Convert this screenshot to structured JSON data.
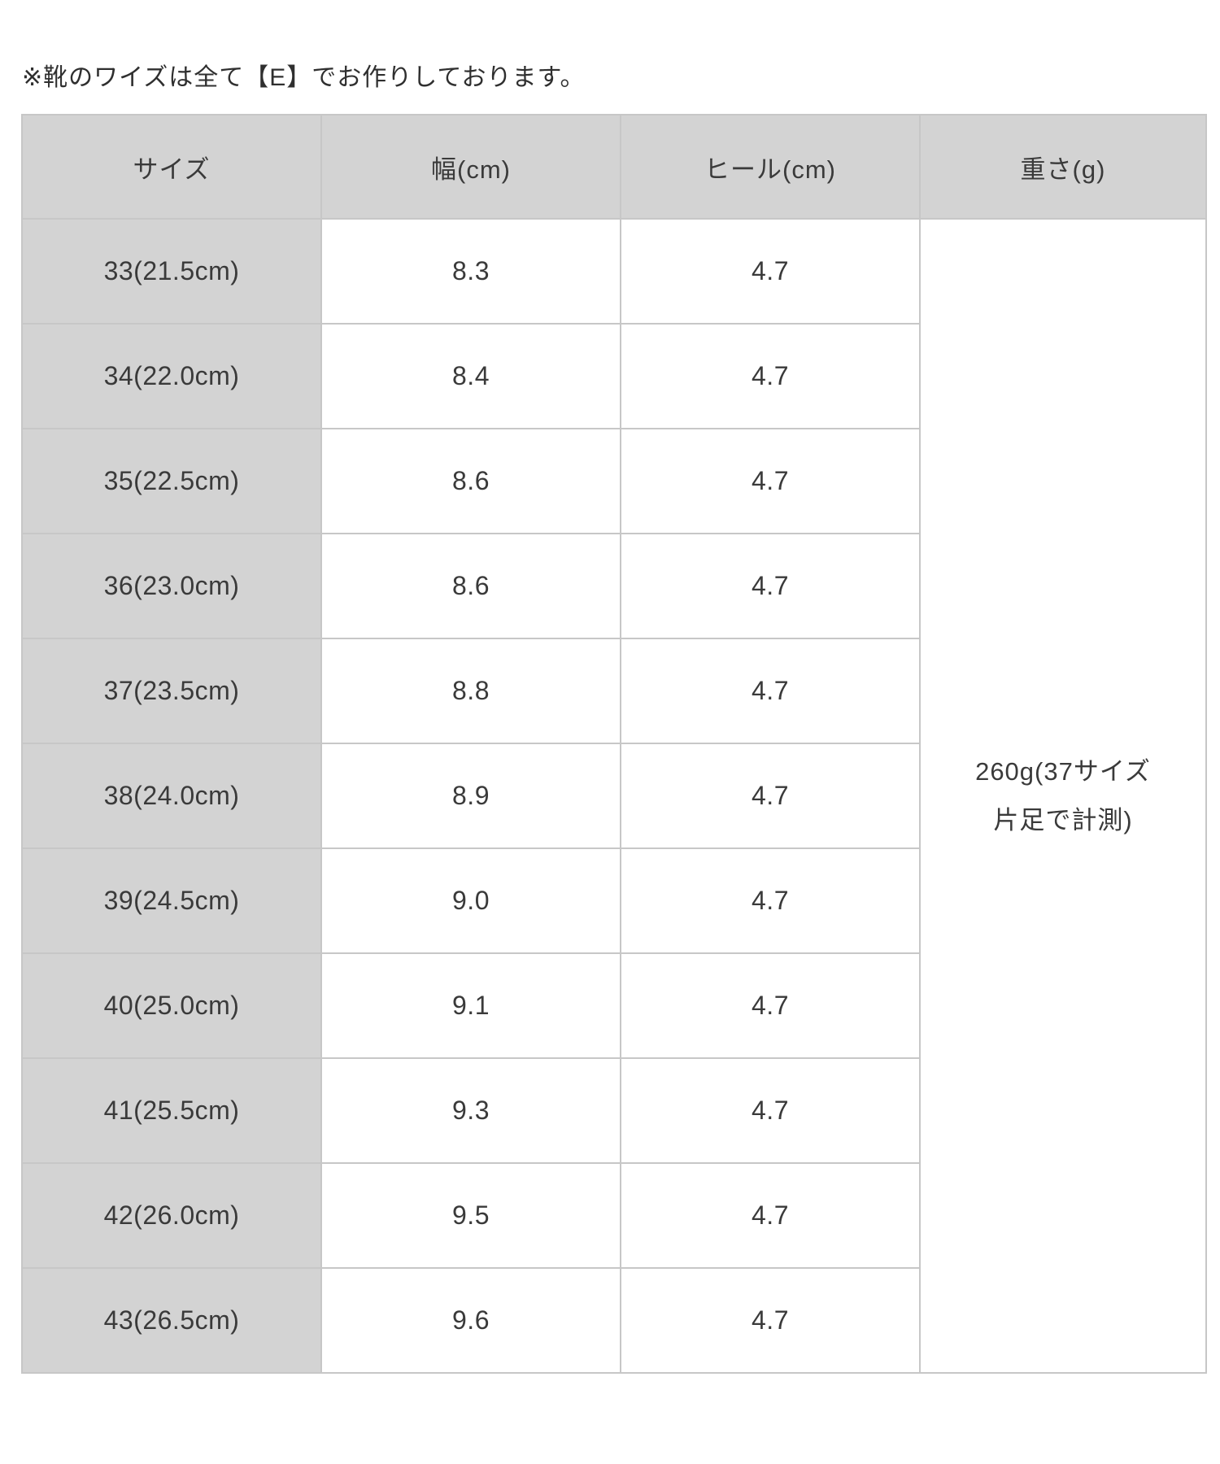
{
  "page": {
    "note": "※靴のワイズは全て【E】でお作りしております。"
  },
  "table": {
    "headers": [
      "サイズ",
      "幅(cm)",
      "ヒール(cm)",
      "重さ(g)"
    ],
    "rows": [
      {
        "size": "33(21.5cm)",
        "width": "8.3",
        "heel": "4.7"
      },
      {
        "size": "34(22.0cm)",
        "width": "8.4",
        "heel": "4.7"
      },
      {
        "size": "35(22.5cm)",
        "width": "8.6",
        "heel": "4.7"
      },
      {
        "size": "36(23.0cm)",
        "width": "8.6",
        "heel": "4.7"
      },
      {
        "size": "37(23.5cm)",
        "width": "8.8",
        "heel": "4.7"
      },
      {
        "size": "38(24.0cm)",
        "width": "8.9",
        "heel": "4.7"
      },
      {
        "size": "39(24.5cm)",
        "width": "9.0",
        "heel": "4.7"
      },
      {
        "size": "40(25.0cm)",
        "width": "9.1",
        "heel": "4.7"
      },
      {
        "size": "41(25.5cm)",
        "width": "9.3",
        "heel": "4.7"
      },
      {
        "size": "42(26.0cm)",
        "width": "9.5",
        "heel": "4.7"
      },
      {
        "size": "43(26.5cm)",
        "width": "9.6",
        "heel": "4.7"
      }
    ],
    "weight": {
      "line1": "260g(37サイズ",
      "line2": "片足で計測)"
    }
  },
  "colors": {
    "cell_gray": "#d3d3d3",
    "border": "#c7c7c7",
    "text": "#3a3a3a"
  }
}
